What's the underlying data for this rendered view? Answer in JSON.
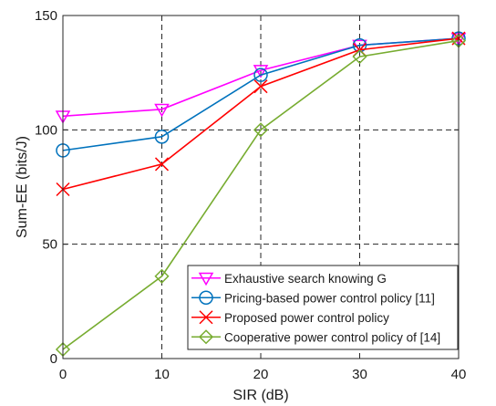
{
  "chart_data": {
    "type": "line",
    "title": "",
    "xlabel": "SIR (dB)",
    "ylabel": "Sum-EE (bits/J)",
    "x": [
      0,
      10,
      20,
      30,
      40
    ],
    "xlim": [
      0,
      40
    ],
    "ylim": [
      0,
      150
    ],
    "xticks": [
      0,
      10,
      20,
      30,
      40
    ],
    "yticks": [
      0,
      50,
      100,
      150
    ],
    "grid": true,
    "legend_position": "bottom-right",
    "series": [
      {
        "name": "Exhaustive search knowing G",
        "values": [
          106,
          109,
          126,
          137,
          140
        ],
        "color": "#ff00ff",
        "marker": "triangle-down"
      },
      {
        "name": "Pricing-based power control policy [11]",
        "values": [
          91,
          97,
          124,
          137,
          140
        ],
        "color": "#0072bd",
        "marker": "circle"
      },
      {
        "name": "Proposed power control policy",
        "values": [
          74,
          85,
          119,
          135,
          140
        ],
        "color": "#ff0000",
        "marker": "x"
      },
      {
        "name": "Cooperative power control policy of [14]",
        "values": [
          4,
          36,
          100,
          132,
          139
        ],
        "color": "#77ac30",
        "marker": "diamond"
      }
    ]
  }
}
